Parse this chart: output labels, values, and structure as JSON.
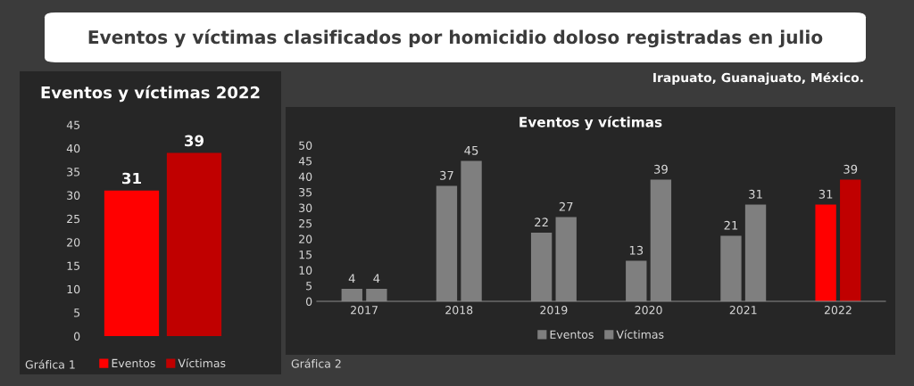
{
  "chart_data": [
    {
      "type": "other",
      "title": "Eventos y víctimas clasificados por homicidio doloso registradas en julio",
      "subtitle": "Irapuato, Guanajuato, México."
    },
    {
      "type": "bar",
      "title": "Eventos y víctimas 2022",
      "categories": [
        null
      ],
      "series": [
        {
          "name": "Eventos",
          "color": "#ff0000",
          "values": [
            31
          ]
        },
        {
          "name": "Víctimas",
          "color": "#c00000",
          "values": [
            39
          ]
        }
      ],
      "ylim": [
        0,
        45
      ],
      "yticks": [
        0,
        5,
        10,
        15,
        20,
        25,
        30,
        35,
        40,
        45
      ],
      "data_labels": true,
      "grid": false,
      "legend": "bottom",
      "annotations": [
        "Gráfica 1"
      ]
    },
    {
      "type": "bar",
      "title": "Eventos y víctimas",
      "categories": [
        "2017",
        "2018",
        "2019",
        "2020",
        "2021",
        "2022"
      ],
      "series": [
        {
          "name": "Eventos",
          "color": "#7f7f7f",
          "colors": [
            "#7f7f7f",
            "#7f7f7f",
            "#7f7f7f",
            "#7f7f7f",
            "#7f7f7f",
            "#ff0000"
          ],
          "values": [
            4,
            37,
            22,
            13,
            21,
            31
          ]
        },
        {
          "name": "Víctimas",
          "color": "#7f7f7f",
          "colors": [
            "#7f7f7f",
            "#7f7f7f",
            "#7f7f7f",
            "#7f7f7f",
            "#7f7f7f",
            "#c00000"
          ],
          "values": [
            4,
            45,
            27,
            39,
            31,
            39
          ]
        }
      ],
      "ylim": [
        0,
        50
      ],
      "yticks": [
        0,
        5,
        10,
        15,
        20,
        25,
        30,
        35,
        40,
        45,
        50
      ],
      "data_labels": true,
      "grid": false,
      "legend": "bottom",
      "annotations": [
        "Gráfica 2"
      ]
    }
  ]
}
